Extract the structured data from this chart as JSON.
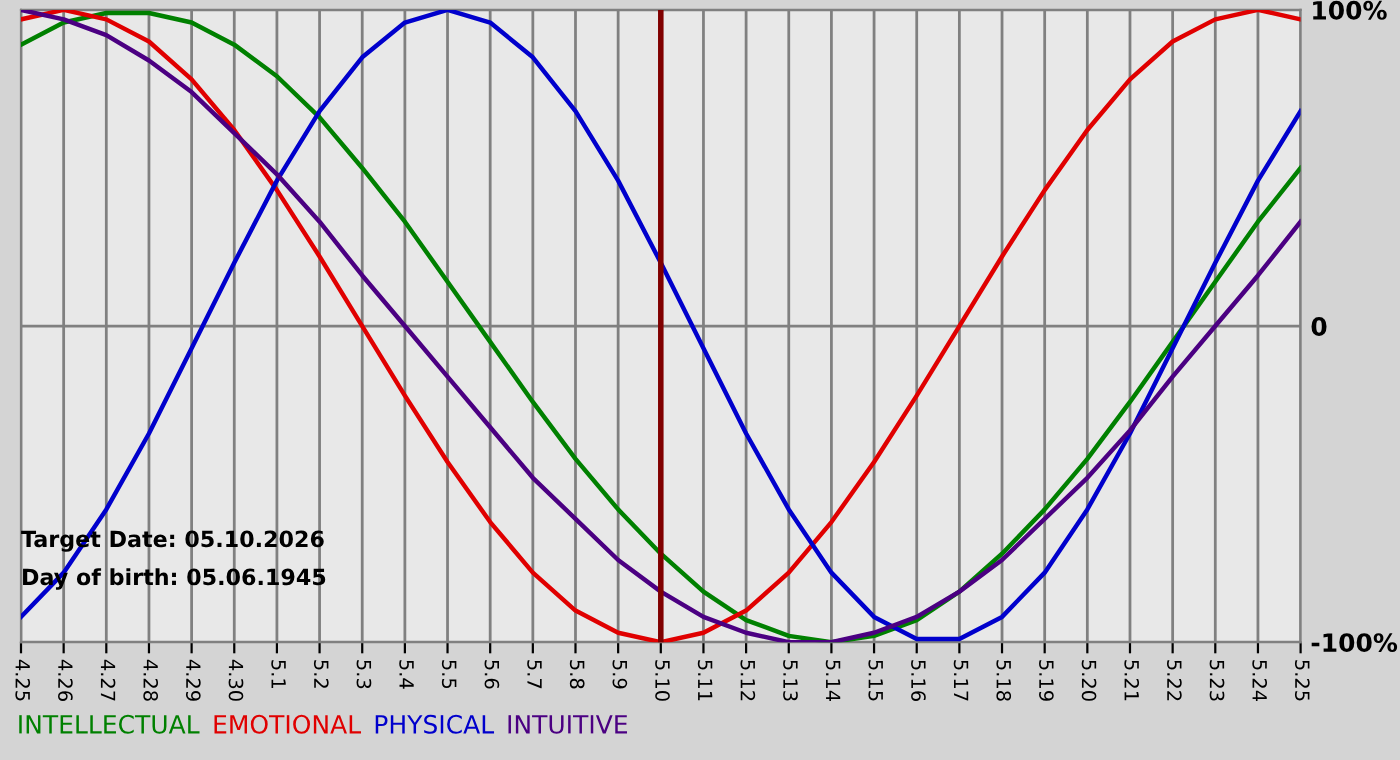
{
  "chart_data": {
    "type": "line",
    "categories": [
      "4.25",
      "4.26",
      "4.27",
      "4.28",
      "4.29",
      "4.30",
      "5.1",
      "5.2",
      "5.3",
      "5.4",
      "5.5",
      "5.6",
      "5.7",
      "5.8",
      "5.9",
      "5.10",
      "5.11",
      "5.12",
      "5.13",
      "5.14",
      "5.15",
      "5.16",
      "5.17",
      "5.18",
      "5.19",
      "5.20",
      "5.21",
      "5.22",
      "5.23",
      "5.24",
      "5.25"
    ],
    "series": [
      {
        "name": "INTELLECTUAL",
        "color": "#008000",
        "values": [
          89,
          96,
          99,
          99,
          96,
          89,
          79,
          66,
          50,
          33,
          14,
          -5,
          -24,
          -42,
          -58,
          -72,
          -84,
          -93,
          -98,
          -100,
          -98,
          -93,
          -84,
          -72,
          -58,
          -42,
          -24,
          -5,
          14,
          33,
          50
        ]
      },
      {
        "name": "EMOTIONAL",
        "color": "#e00000",
        "values": [
          97,
          100,
          97,
          90,
          78,
          62,
          43,
          22,
          0,
          -22,
          -43,
          -62,
          -78,
          -90,
          -97,
          -100,
          -97,
          -90,
          -78,
          -62,
          -43,
          -22,
          0,
          22,
          43,
          62,
          78,
          90,
          97,
          100,
          97
        ]
      },
      {
        "name": "PHYSICAL",
        "color": "#0000cc",
        "values": [
          -92,
          -78,
          -58,
          -34,
          -7,
          20,
          46,
          68,
          85,
          96,
          100,
          96,
          85,
          68,
          46,
          20,
          -7,
          -34,
          -58,
          -78,
          -92,
          -99,
          -99,
          -92,
          -78,
          -58,
          -34,
          -7,
          20,
          46,
          68
        ]
      },
      {
        "name": "INTUITIVE",
        "color": "#4b0082",
        "values": [
          100,
          97,
          92,
          84,
          74,
          61,
          48,
          33,
          16,
          0,
          -16,
          -32,
          -48,
          -61,
          -74,
          -84,
          -92,
          -97,
          -100,
          -100,
          -97,
          -92,
          -84,
          -74,
          -61,
          -48,
          -33,
          -16,
          0,
          16,
          33
        ]
      }
    ],
    "ylim": [
      -100,
      100
    ],
    "yticks": [
      {
        "value": 100,
        "label": "100%"
      },
      0,
      {
        "value": -100,
        "label": "-100%"
      }
    ],
    "grid": true,
    "legend": "bottom left",
    "marker": "none",
    "line_style": "solid",
    "ref_lines": [
      {
        "axis": "x",
        "value": "5.10",
        "color": "#800000"
      }
    ],
    "annotations": [
      "Target Date: 05.10.2026",
      "Day of birth: 05.06.1945"
    ]
  }
}
